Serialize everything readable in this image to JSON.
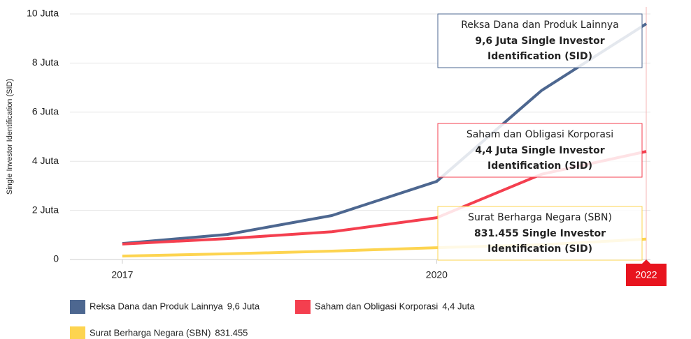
{
  "chart_data": {
    "type": "line",
    "y_label": "Single Investor Identification (SID)",
    "x": [
      2017,
      2018,
      2019,
      2020,
      2021,
      2022
    ],
    "xlim": [
      2016.5,
      2022
    ],
    "xticks": [
      2017,
      2020,
      2022
    ],
    "highlight_x": 2022,
    "ylim": [
      0,
      10
    ],
    "yticks": [
      0,
      {
        "value": 2,
        "label": "2 Juta"
      },
      {
        "value": 4,
        "label": "4 Juta"
      },
      {
        "value": 6,
        "label": "6 Juta"
      },
      {
        "value": 8,
        "label": "8 Juta"
      },
      {
        "value": 10,
        "label": "10 Juta"
      }
    ],
    "grid": true,
    "series": [
      {
        "name": "Reksa Dana dan Produk Lainnya",
        "legend_value": "9,6 Juta",
        "color": "#4d6790",
        "values": [
          0.65,
          1.02,
          1.79,
          3.18,
          6.88,
          9.6
        ]
      },
      {
        "name": "Saham dan Obligasi Korporasi",
        "legend_value": "4,4 Juta",
        "color": "#f43f4f",
        "values": [
          0.63,
          0.85,
          1.13,
          1.7,
          3.47,
          4.4
        ]
      },
      {
        "name": "Surat Berharga Negara (SBN)",
        "legend_value": "831.455",
        "color": "#fdd450",
        "values": [
          0.14,
          0.23,
          0.34,
          0.48,
          0.6,
          0.831455
        ]
      }
    ],
    "annotations": [
      {
        "title": "Reksa Dana dan Produk Lainnya",
        "lines": [
          "9,6 Juta Single Investor",
          "Identification (SID)"
        ]
      },
      {
        "title": "Saham dan Obligasi Korporasi",
        "lines": [
          "4,4 Juta Single Investor",
          "Identification (SID)"
        ]
      },
      {
        "title": "Surat Berharga Negara (SBN)",
        "lines": [
          "831.455 Single Investor",
          "Identification (SID)"
        ]
      }
    ]
  }
}
